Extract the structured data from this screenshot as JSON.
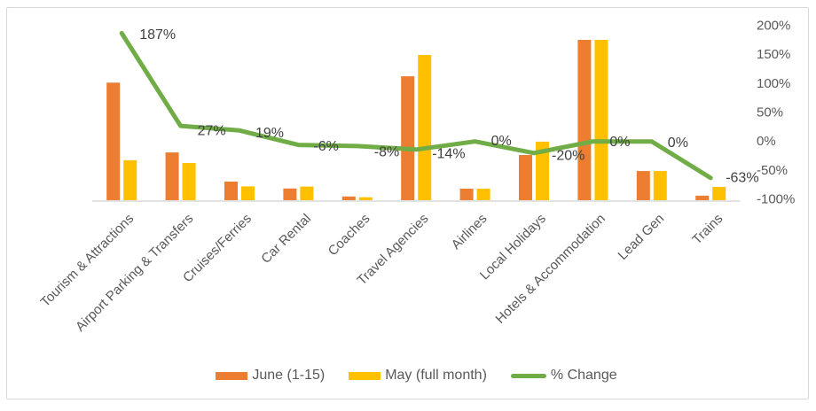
{
  "chart_data": {
    "type": "combo-bar-line",
    "title": "",
    "categories": [
      "Tourism & Attractions",
      "Airport Parking & Transfers",
      "Cruises/Ferries",
      "Car Rental",
      "Coaches",
      "Travel Agencies",
      "Airlines",
      "Local Holidays",
      "Hotels & Accommodation",
      "Lead Gen",
      "Trains"
    ],
    "series": [
      {
        "name": "June (1-15)",
        "type": "bar",
        "color": "#ED7D31",
        "values": [
          73.3,
          29.8,
          11.6,
          7.3,
          2.3,
          77.3,
          7.2,
          28.2,
          100,
          18.2,
          2.8
        ]
      },
      {
        "name": "May (full month)",
        "type": "bar",
        "color": "#FFC000",
        "values": [
          24.9,
          23.2,
          8.6,
          8.5,
          1.8,
          90.6,
          7.2,
          36.5,
          100,
          18.2,
          8.3
        ]
      },
      {
        "name": "% Change",
        "type": "line",
        "color": "#70AD47",
        "values": [
          187,
          27,
          19,
          -6,
          -8,
          -14,
          0,
          -20,
          0,
          0,
          -63
        ],
        "labels": [
          "187%",
          "27%",
          "19%",
          "-6%",
          "-8%",
          "-14%",
          "0%",
          "-20%",
          "0%",
          "0%",
          "-63%"
        ],
        "label_offsets": [
          [
            20,
            2
          ],
          [
            19,
            6
          ],
          [
            18,
            3
          ],
          [
            17,
            2
          ],
          [
            19,
            7
          ],
          [
            18,
            5
          ],
          [
            18,
            0
          ],
          [
            20,
            3
          ],
          [
            19,
            1
          ],
          [
            18,
            2
          ],
          [
            17,
            0
          ]
        ]
      }
    ],
    "bar_axis": {
      "visible": false,
      "note": "bar values in relative units, tallest bars (Hotels & Accommodation) = 100"
    },
    "right_axis": {
      "ticks": [
        "200%",
        "150%",
        "100%",
        "50%",
        "0%",
        "-50%",
        "-100%"
      ],
      "tick_values": [
        200,
        150,
        100,
        50,
        0,
        -50,
        -100
      ],
      "min": -100,
      "max": 200
    },
    "legend_position": "bottom",
    "grid": false
  },
  "colors": {
    "axis_line": "#D9D9D9",
    "axis_text": "#595959",
    "data_label_text": "#404040",
    "border": "#D9D9D9",
    "background": "#FFFFFF"
  }
}
